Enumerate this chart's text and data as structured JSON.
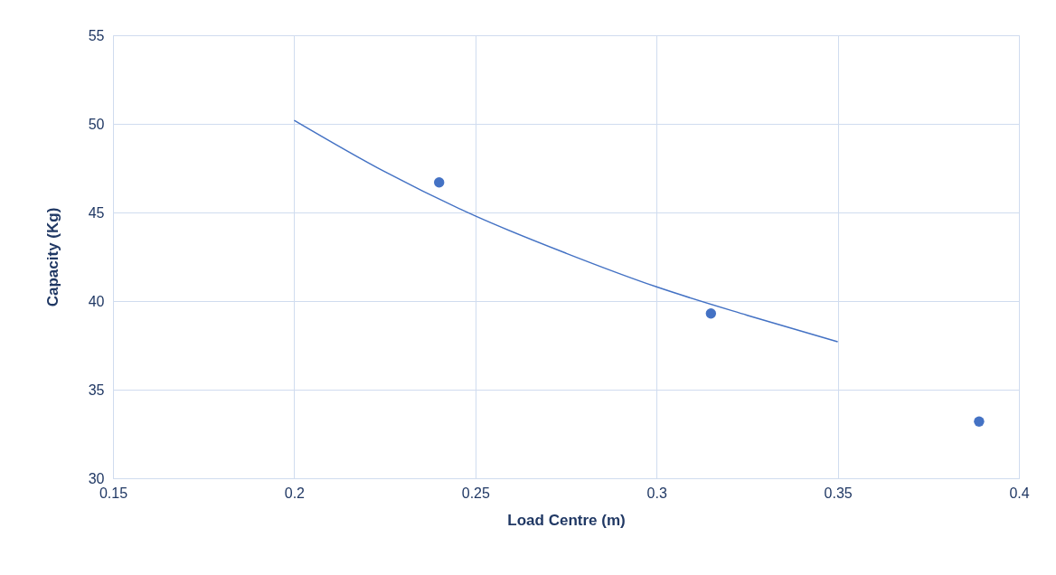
{
  "chart_data": {
    "type": "scatter",
    "xlabel": "Load Centre (m)",
    "ylabel": "Capacity (Kg)",
    "xlim": [
      0.15,
      0.4
    ],
    "xticks": [
      0.15,
      0.2,
      0.25,
      0.3,
      0.35,
      0.4
    ],
    "ylim": [
      30,
      55
    ],
    "yticks": [
      30,
      35,
      40,
      45,
      50,
      55
    ],
    "grid": true,
    "series": [
      {
        "color": "#4472c4",
        "marker": "circle",
        "x": [
          0.24,
          0.315,
          0.389
        ],
        "values": [
          46.7,
          39.3,
          33.2
        ]
      },
      {
        "type": "line",
        "color": "#4472c4",
        "marker": "none",
        "line_style": "solid",
        "x": [
          0.2,
          0.225,
          0.25,
          0.275,
          0.3,
          0.325,
          0.35
        ],
        "values": [
          50.2,
          47.3,
          44.8,
          42.7,
          40.8,
          39.2,
          37.7
        ]
      }
    ]
  }
}
